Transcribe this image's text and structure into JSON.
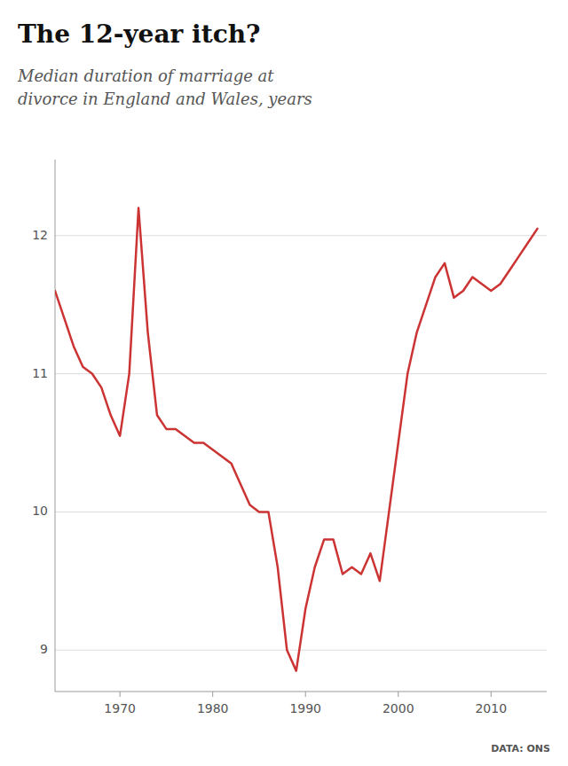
{
  "chart_data": {
    "type": "line",
    "title": "The 12-year itch?",
    "subtitle": "Median duration of marriage at\ndivorce in England and Wales, years",
    "annotations": [
      "DATA: ONS"
    ],
    "color": "#cc3333",
    "grid": true,
    "xlim": [
      1963,
      2016
    ],
    "xticks": [
      1970,
      1980,
      1990,
      2000,
      2010
    ],
    "ylim": [
      8.7,
      12.55
    ],
    "yticks": [
      9,
      10,
      11,
      12
    ],
    "x": [
      1963,
      1964,
      1965,
      1966,
      1967,
      1968,
      1969,
      1970,
      1971,
      1972,
      1973,
      1974,
      1975,
      1976,
      1977,
      1978,
      1979,
      1980,
      1981,
      1982,
      1983,
      1984,
      1985,
      1986,
      1987,
      1988,
      1989,
      1990,
      1991,
      1992,
      1993,
      1994,
      1995,
      1996,
      1997,
      1998,
      1999,
      2000,
      2001,
      2002,
      2003,
      2004,
      2005,
      2006,
      2007,
      2008,
      2009,
      2010,
      2011,
      2012,
      2013,
      2014,
      2015
    ],
    "values": [
      11.6,
      11.4,
      11.2,
      11.05,
      11.0,
      10.9,
      10.7,
      10.55,
      11.0,
      12.2,
      11.3,
      10.7,
      10.6,
      10.6,
      10.55,
      10.5,
      10.5,
      10.45,
      10.4,
      10.35,
      10.2,
      10.05,
      10.0,
      10.0,
      9.6,
      9.0,
      8.85,
      9.3,
      9.6,
      9.8,
      9.8,
      9.55,
      9.6,
      9.55,
      9.7,
      9.5,
      10.0,
      10.5,
      11.0,
      11.3,
      11.5,
      11.7,
      11.8,
      11.55,
      11.6,
      11.7,
      11.65,
      11.6,
      11.65,
      11.75,
      11.85,
      11.95,
      12.05
    ]
  }
}
